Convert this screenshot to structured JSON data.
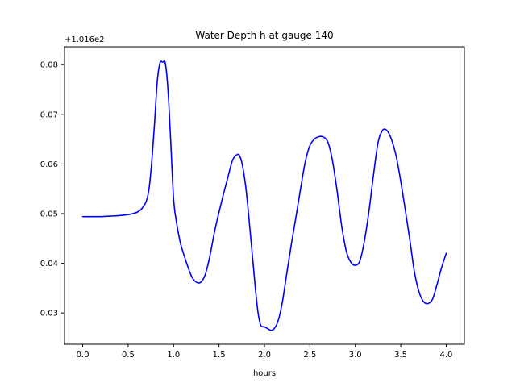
{
  "chart_data": {
    "type": "line",
    "title": "Water Depth h at gauge 140",
    "xlabel": "hours",
    "ylabel": "",
    "y_offset_label": "+1.016e2",
    "y_offset": 101.6,
    "xlim": [
      -0.2,
      4.2
    ],
    "ylim": [
      0.0237,
      0.0836
    ],
    "x_ticks": [
      0.0,
      0.5,
      1.0,
      1.5,
      2.0,
      2.5,
      3.0,
      3.5,
      4.0
    ],
    "x_tick_labels": [
      "0.0",
      "0.5",
      "1.0",
      "1.5",
      "2.0",
      "2.5",
      "3.0",
      "3.5",
      "4.0"
    ],
    "y_ticks": [
      0.03,
      0.04,
      0.05,
      0.06,
      0.07,
      0.08
    ],
    "y_tick_labels": [
      "0.03",
      "0.04",
      "0.05",
      "0.06",
      "0.07",
      "0.08"
    ],
    "grid": false,
    "line_color": "#0000ff",
    "series": [
      {
        "x": [
          0.0,
          0.1,
          0.2,
          0.3,
          0.4,
          0.5,
          0.55,
          0.6,
          0.65,
          0.7,
          0.73,
          0.76,
          0.79,
          0.82,
          0.85,
          0.88,
          0.91,
          0.94,
          0.97,
          1.0,
          1.03,
          1.07,
          1.1,
          1.15,
          1.2,
          1.25,
          1.3,
          1.35,
          1.4,
          1.45,
          1.5,
          1.55,
          1.6,
          1.65,
          1.7,
          1.73,
          1.76,
          1.8,
          1.85,
          1.9,
          1.93,
          1.96,
          2.0,
          2.04,
          2.07,
          2.1,
          2.13,
          2.16,
          2.2,
          2.25,
          2.3,
          2.35,
          2.4,
          2.45,
          2.5,
          2.55,
          2.6,
          2.65,
          2.7,
          2.75,
          2.8,
          2.85,
          2.9,
          2.95,
          3.0,
          3.05,
          3.1,
          3.15,
          3.2,
          3.25,
          3.3,
          3.35,
          3.4,
          3.45,
          3.5,
          3.55,
          3.6,
          3.65,
          3.7,
          3.75,
          3.8,
          3.85,
          3.9,
          3.95,
          4.0
        ],
        "y": [
          0.0494,
          0.0494,
          0.0494,
          0.0495,
          0.0496,
          0.0498,
          0.05,
          0.0503,
          0.051,
          0.0525,
          0.055,
          0.0605,
          0.068,
          0.0765,
          0.0803,
          0.0805,
          0.0802,
          0.0745,
          0.064,
          0.053,
          0.0485,
          0.0445,
          0.0425,
          0.0397,
          0.0373,
          0.0362,
          0.0362,
          0.0378,
          0.0415,
          0.0463,
          0.0503,
          0.054,
          0.0575,
          0.0608,
          0.0619,
          0.0615,
          0.0595,
          0.0545,
          0.045,
          0.035,
          0.03,
          0.0275,
          0.0272,
          0.0268,
          0.0265,
          0.0267,
          0.0275,
          0.029,
          0.0325,
          0.0385,
          0.0443,
          0.0497,
          0.0553,
          0.0605,
          0.0637,
          0.065,
          0.0655,
          0.0654,
          0.0643,
          0.0605,
          0.0545,
          0.0475,
          0.0425,
          0.0402,
          0.0396,
          0.0405,
          0.0445,
          0.0505,
          0.0578,
          0.0643,
          0.0668,
          0.0667,
          0.0648,
          0.0615,
          0.0565,
          0.0507,
          0.0447,
          0.0383,
          0.0343,
          0.0323,
          0.0319,
          0.0328,
          0.0358,
          0.0392,
          0.042
        ]
      }
    ]
  }
}
